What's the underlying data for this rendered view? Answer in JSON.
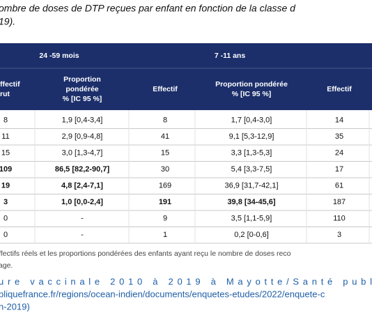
{
  "caption": {
    "lines": [
      "ombre de doses de DTP reçues par enfant en fonction de la classe d",
      "19)."
    ]
  },
  "table": {
    "group_headers": [
      "24 -59 mois",
      "7 -11 ans"
    ],
    "column_headers": [
      [
        "ffectif",
        "rut"
      ],
      [
        "Proportion",
        "pondérée",
        "% [IC 95 %]"
      ],
      [
        "Effectif"
      ],
      [
        "Proportion pondérée",
        "% [IC 95 %]"
      ],
      [
        "Effectif"
      ]
    ],
    "rows": [
      [
        "8",
        "1,9 [0,4-3,4]",
        "8",
        "1,7 [0,4-3,0]",
        "14"
      ],
      [
        "11",
        "2,9 [0,9-4,8]",
        "41",
        "9,1 [5,3-12,9]",
        "35"
      ],
      [
        "15",
        "3,0 [1,3-4,7]",
        "15",
        "3,3 [1,3-5,3]",
        "24"
      ],
      [
        "109",
        "86,5 [82,2-90,7]",
        "30",
        "5,4 [3,3-7,5]",
        "17"
      ],
      [
        "19",
        "4,8 [2,4-7,1]",
        "169",
        "36,9 [31,7-42,1]",
        "61"
      ],
      [
        "3",
        "1,0 [0,0-2,4]",
        "191",
        "39,8 [34-45,6]",
        "187"
      ],
      [
        "0",
        "-",
        "9",
        "3,5 [1,1-5,9]",
        "110"
      ],
      [
        "0",
        "-",
        "1",
        "0,2 [0-0,6]",
        "3"
      ]
    ]
  },
  "note": {
    "lines": [
      "ffectifs réels et les proportions pondérées des enfants ayant reçu le nombre de doses reco",
      "age."
    ]
  },
  "source": {
    "lines": [
      "ure vaccinale 2010 à 2019 à Mayotte/Santé publ",
      "bliquefrance.fr/regions/ocean-indien/documents/enquetes-etudes/2022/enquete-c",
      "n-2019)"
    ]
  }
}
